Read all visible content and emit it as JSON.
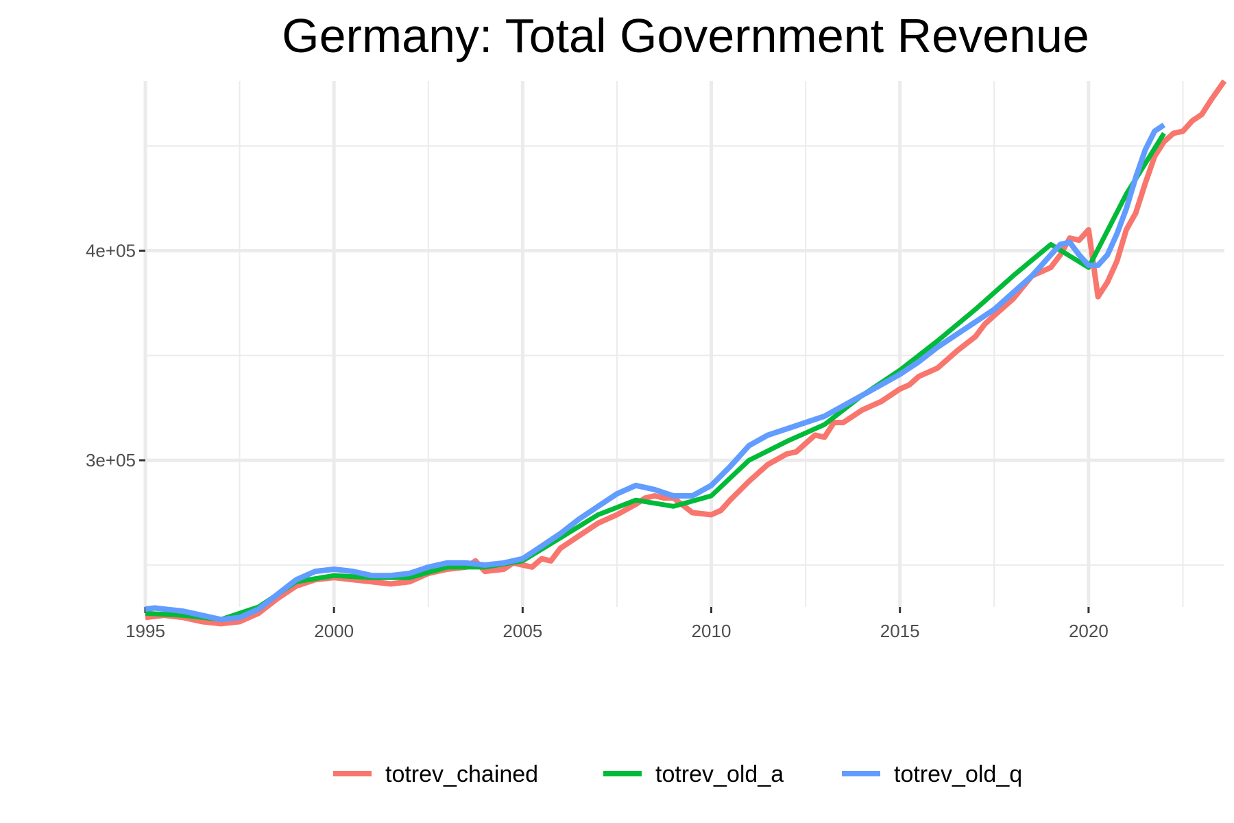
{
  "chart_data": {
    "type": "line",
    "title": "Germany: Total Government Revenue",
    "xlabel": "",
    "ylabel": "",
    "xlim": [
      1995,
      2023.6
    ],
    "ylim": [
      230000,
      481000
    ],
    "x_ticks": [
      1995,
      2000,
      2005,
      2010,
      2015,
      2020
    ],
    "x_tick_labels": [
      "1995",
      "2000",
      "2005",
      "2010",
      "2015",
      "2020"
    ],
    "y_ticks": [
      300000,
      400000
    ],
    "y_tick_labels": [
      "3e+05",
      "4e+05"
    ],
    "grid": true,
    "legend": "bottom",
    "series": [
      {
        "name": "totrev_chained",
        "color": "#F8766D",
        "x": [
          1995,
          1995.5,
          1996,
          1996.5,
          1997,
          1997.5,
          1998,
          1998.5,
          1999,
          1999.5,
          2000,
          2000.5,
          2001,
          2001.5,
          2002,
          2002.5,
          2003,
          2003.5,
          2003.75,
          2004,
          2004.5,
          2004.75,
          2005,
          2005.25,
          2005.5,
          2005.75,
          2006,
          2006.5,
          2007,
          2007.5,
          2008,
          2008.25,
          2008.5,
          2008.75,
          2009,
          2009.5,
          2010,
          2010.25,
          2010.5,
          2011,
          2011.5,
          2012,
          2012.25,
          2012.5,
          2012.75,
          2013,
          2013.25,
          2013.5,
          2014,
          2014.5,
          2015,
          2015.25,
          2015.5,
          2016,
          2016.5,
          2017,
          2017.25,
          2017.5,
          2018,
          2018.5,
          2019,
          2019.25,
          2019.5,
          2019.75,
          2020,
          2020.25,
          2020.5,
          2020.75,
          2021,
          2021.25,
          2021.5,
          2021.75,
          2022,
          2022.25,
          2022.5,
          2022.75,
          2023,
          2023.25,
          2023.6
        ],
        "values": [
          225000,
          226000,
          225000,
          223000,
          222000,
          223000,
          227000,
          234000,
          240000,
          243000,
          244000,
          243000,
          242000,
          241000,
          242000,
          246000,
          248000,
          249000,
          252000,
          247000,
          248000,
          251000,
          250000,
          249000,
          253000,
          252000,
          258000,
          264000,
          270000,
          274000,
          279000,
          282000,
          283000,
          282000,
          282000,
          275000,
          274000,
          276000,
          281000,
          290000,
          298000,
          303000,
          304000,
          308000,
          312000,
          311000,
          318000,
          318000,
          324000,
          328000,
          334000,
          336000,
          340000,
          344000,
          352000,
          359000,
          365000,
          369000,
          377000,
          388000,
          392000,
          398000,
          406000,
          405000,
          410000,
          378000,
          385000,
          395000,
          410000,
          418000,
          432000,
          445000,
          452000,
          456000,
          457000,
          462000,
          465000,
          472000,
          481000
        ]
      },
      {
        "name": "totrev_old_a",
        "color": "#00BA38",
        "x": [
          1995,
          1996,
          1997,
          1998,
          1999,
          2000,
          2001,
          2002,
          2003,
          2004,
          2005,
          2006,
          2007,
          2008,
          2009,
          2010,
          2011,
          2012,
          2013,
          2014,
          2015,
          2016,
          2017,
          2018,
          2019,
          2020,
          2021,
          2022
        ],
        "values": [
          227000,
          226000,
          224000,
          230000,
          242000,
          245000,
          244000,
          244000,
          249000,
          249000,
          252000,
          263000,
          274000,
          281000,
          278000,
          283000,
          300000,
          309000,
          317000,
          331000,
          343000,
          357000,
          372000,
          388000,
          403000,
          392000,
          427000,
          456000
        ]
      },
      {
        "name": "totrev_old_q",
        "color": "#619CFF",
        "x": [
          1995,
          1995.25,
          1995.5,
          1996,
          1996.5,
          1997,
          1997.5,
          1998,
          1998.5,
          1999,
          1999.5,
          2000,
          2000.5,
          2001,
          2001.5,
          2002,
          2002.5,
          2003,
          2003.5,
          2004,
          2004.5,
          2005,
          2005.5,
          2006,
          2006.5,
          2007,
          2007.5,
          2008,
          2008.5,
          2009,
          2009.5,
          2010,
          2010.5,
          2011,
          2011.5,
          2012,
          2012.5,
          2013,
          2013.5,
          2014,
          2014.5,
          2015,
          2015.5,
          2016,
          2016.5,
          2017,
          2017.5,
          2018,
          2018.5,
          2019,
          2019.25,
          2019.5,
          2019.75,
          2020,
          2020.25,
          2020.5,
          2020.75,
          2021,
          2021.25,
          2021.5,
          2021.75,
          2022
        ],
        "values": [
          229000,
          229500,
          229000,
          228000,
          226000,
          224000,
          225000,
          229000,
          236000,
          243000,
          247000,
          248000,
          247000,
          245000,
          245000,
          246000,
          249000,
          251000,
          251000,
          250000,
          251000,
          253000,
          259000,
          265000,
          272000,
          278000,
          284000,
          288000,
          286000,
          283000,
          283000,
          288000,
          297000,
          307000,
          312000,
          315000,
          318000,
          321000,
          326000,
          331000,
          336000,
          341000,
          347000,
          354000,
          360000,
          366000,
          372000,
          380000,
          388000,
          398000,
          403000,
          404000,
          398000,
          393000,
          393000,
          398000,
          408000,
          420000,
          435000,
          448000,
          457000,
          460000
        ]
      }
    ]
  }
}
